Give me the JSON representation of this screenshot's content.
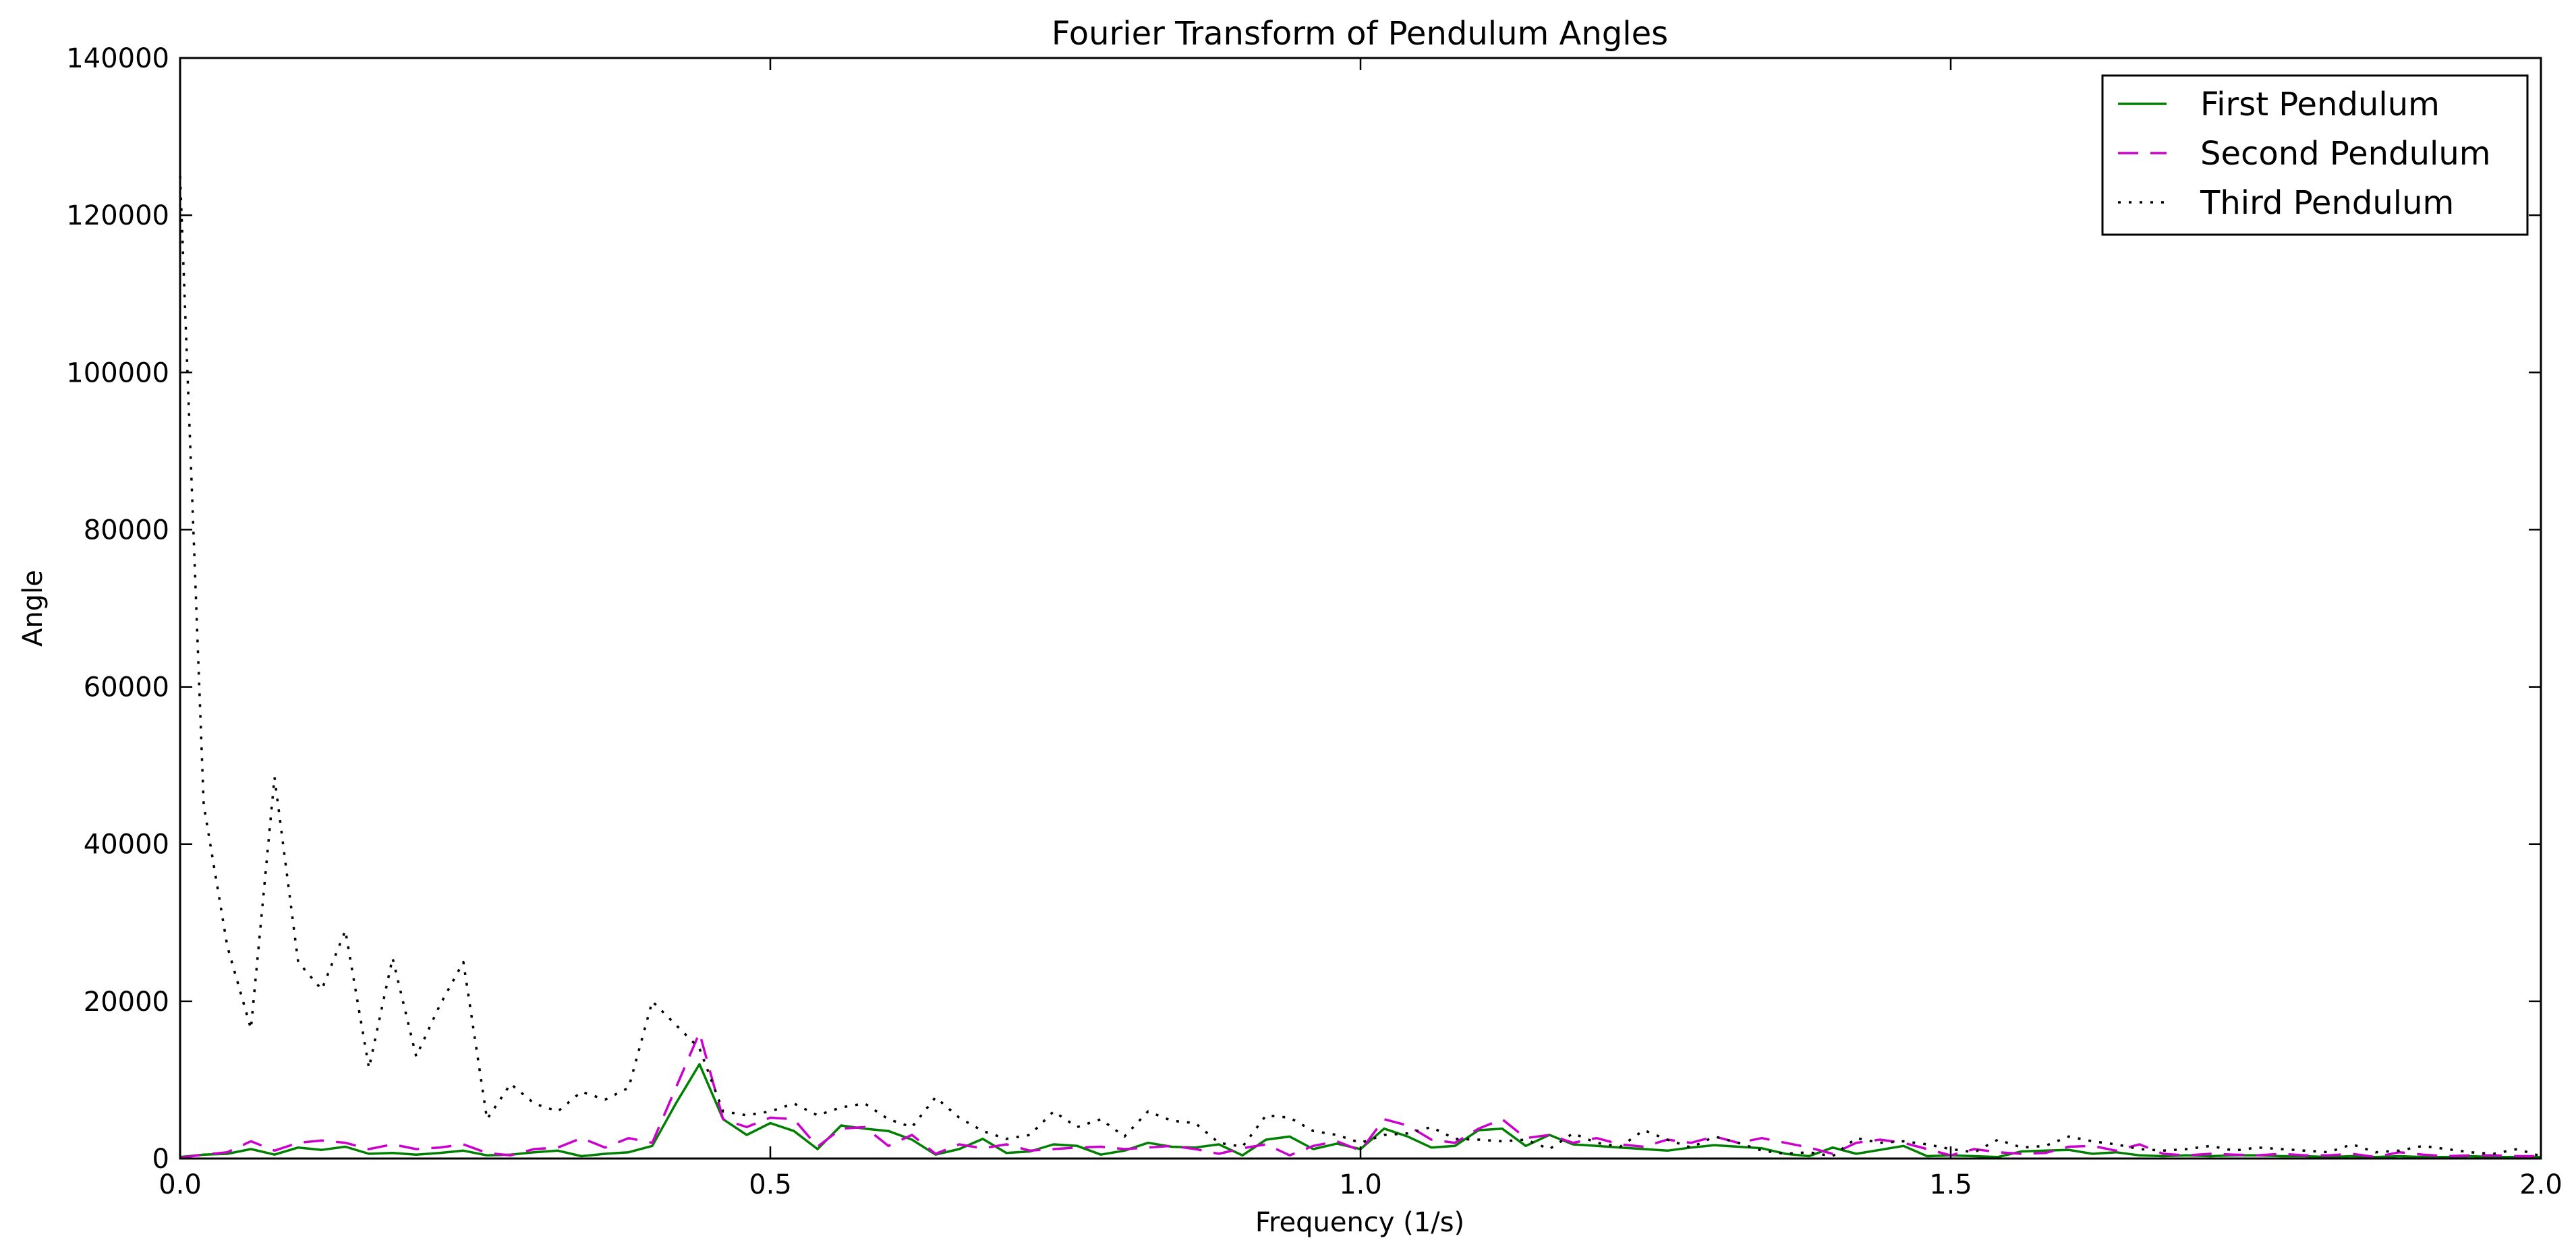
{
  "chart_data": {
    "type": "line",
    "title": "Fourier Transform of Pendulum Angles",
    "xlabel": "Frequency (1/s)",
    "ylabel": "Angle",
    "xlim": [
      0.0,
      2.0
    ],
    "ylim": [
      0,
      140000
    ],
    "x_ticks": [
      0.0,
      0.5,
      1.0,
      1.5,
      2.0
    ],
    "x_tick_labels": [
      "0.0",
      "0.5",
      "1.0",
      "1.5",
      "2.0"
    ],
    "y_ticks": [
      0,
      20000,
      40000,
      60000,
      80000,
      100000,
      120000,
      140000
    ],
    "y_tick_labels": [
      "0",
      "20000",
      "40000",
      "60000",
      "80000",
      "100000",
      "120000",
      "140000"
    ],
    "grid": false,
    "legend_position": "top-right",
    "x": [
      0.0,
      0.02,
      0.04,
      0.06,
      0.08,
      0.1,
      0.12,
      0.14,
      0.16,
      0.18,
      0.2,
      0.22,
      0.24,
      0.26,
      0.28,
      0.3,
      0.32,
      0.34,
      0.36,
      0.38,
      0.4,
      0.42,
      0.44,
      0.46,
      0.48,
      0.5,
      0.52,
      0.54,
      0.56,
      0.58,
      0.6,
      0.62,
      0.64,
      0.66,
      0.68,
      0.7,
      0.72,
      0.74,
      0.76,
      0.78,
      0.8,
      0.82,
      0.84,
      0.86,
      0.88,
      0.9,
      0.92,
      0.94,
      0.96,
      0.98,
      1.0,
      1.02,
      1.04,
      1.06,
      1.08,
      1.1,
      1.12,
      1.14,
      1.16,
      1.18,
      1.2,
      1.22,
      1.24,
      1.26,
      1.28,
      1.3,
      1.32,
      1.34,
      1.36,
      1.38,
      1.4,
      1.42,
      1.44,
      1.46,
      1.48,
      1.5,
      1.52,
      1.54,
      1.56,
      1.58,
      1.6,
      1.62,
      1.64,
      1.66,
      1.68,
      1.7,
      1.72,
      1.74,
      1.76,
      1.78,
      1.8,
      1.82,
      1.84,
      1.86,
      1.88,
      1.9,
      1.92,
      1.94,
      1.96,
      1.98,
      2.0
    ],
    "series": [
      {
        "name": "First Pendulum",
        "color": "#008000",
        "style": "solid",
        "values": [
          200,
          500,
          600,
          1200,
          500,
          1400,
          1100,
          1500,
          600,
          700,
          500,
          700,
          1000,
          400,
          500,
          800,
          1000,
          300,
          600,
          800,
          1600,
          7000,
          12000,
          5000,
          3000,
          4500,
          3500,
          1200,
          4200,
          3800,
          3500,
          2400,
          500,
          1200,
          2500,
          700,
          900,
          1800,
          1600,
          500,
          1000,
          2000,
          1500,
          1400,
          1800,
          400,
          2400,
          2800,
          1200,
          1900,
          1200,
          3800,
          2800,
          1400,
          1600,
          3600,
          3800,
          1600,
          3000,
          1800,
          1600,
          1400,
          1200,
          1000,
          1400,
          1700,
          1500,
          1300,
          600,
          300,
          1400,
          600,
          1100,
          1600,
          300,
          400,
          300,
          200,
          900,
          1000,
          1100,
          600,
          800,
          400,
          300,
          400,
          300,
          400,
          400,
          300,
          300,
          200,
          300,
          200,
          300,
          200,
          200,
          300,
          200,
          200,
          200
        ]
      },
      {
        "name": "Second Pendulum",
        "color": "#cc00cc",
        "style": "dashed",
        "values": [
          100,
          500,
          800,
          2200,
          1000,
          2000,
          2300,
          2000,
          1200,
          1800,
          1200,
          1400,
          1800,
          700,
          400,
          1200,
          1400,
          2600,
          1400,
          2600,
          2000,
          9000,
          16000,
          5000,
          4000,
          5200,
          5000,
          1500,
          3800,
          4000,
          1600,
          3000,
          600,
          1800,
          1300,
          1800,
          1000,
          1200,
          1400,
          1500,
          1200,
          1400,
          1600,
          1200,
          600,
          1300,
          1800,
          400,
          1600,
          2200,
          1000,
          5000,
          4200,
          2400,
          2000,
          3800,
          5000,
          2600,
          3000,
          2000,
          2600,
          1800,
          1500,
          2400,
          2000,
          2800,
          2000,
          2600,
          2000,
          1400,
          600,
          2000,
          2400,
          2000,
          1200,
          400,
          1200,
          800,
          600,
          700,
          1500,
          1600,
          1000,
          1800,
          600,
          400,
          600,
          500,
          400,
          600,
          400,
          400,
          600,
          200,
          800,
          500,
          300,
          400,
          400,
          300,
          300
        ]
      },
      {
        "name": "Third Pendulum",
        "color": "#000000",
        "style": "dotted",
        "values": [
          125000,
          45000,
          27000,
          16500,
          48500,
          25000,
          21500,
          29000,
          11500,
          25500,
          13000,
          19500,
          25000,
          5000,
          9500,
          7000,
          6000,
          8500,
          7500,
          9000,
          20000,
          17000,
          14000,
          6000,
          5500,
          6000,
          7000,
          5500,
          6500,
          7000,
          5000,
          4000,
          7800,
          5200,
          3500,
          2500,
          3000,
          6000,
          4000,
          5000,
          2800,
          6000,
          4800,
          4500,
          2000,
          1500,
          5500,
          5200,
          3500,
          3000,
          2000,
          3000,
          3200,
          4000,
          2500,
          2400,
          2200,
          2400,
          1200,
          3200,
          2000,
          1500,
          3600,
          2400,
          1400,
          2800,
          2000,
          1000,
          600,
          800,
          300,
          2600,
          2000,
          2200,
          1800,
          1200,
          800,
          2400,
          1400,
          1600,
          2800,
          2200,
          1800,
          1200,
          1000,
          1200,
          1600,
          1000,
          1400,
          1200,
          1000,
          800,
          1800,
          800,
          1000,
          1600,
          1200,
          800,
          600,
          1200,
          300
        ]
      }
    ]
  }
}
